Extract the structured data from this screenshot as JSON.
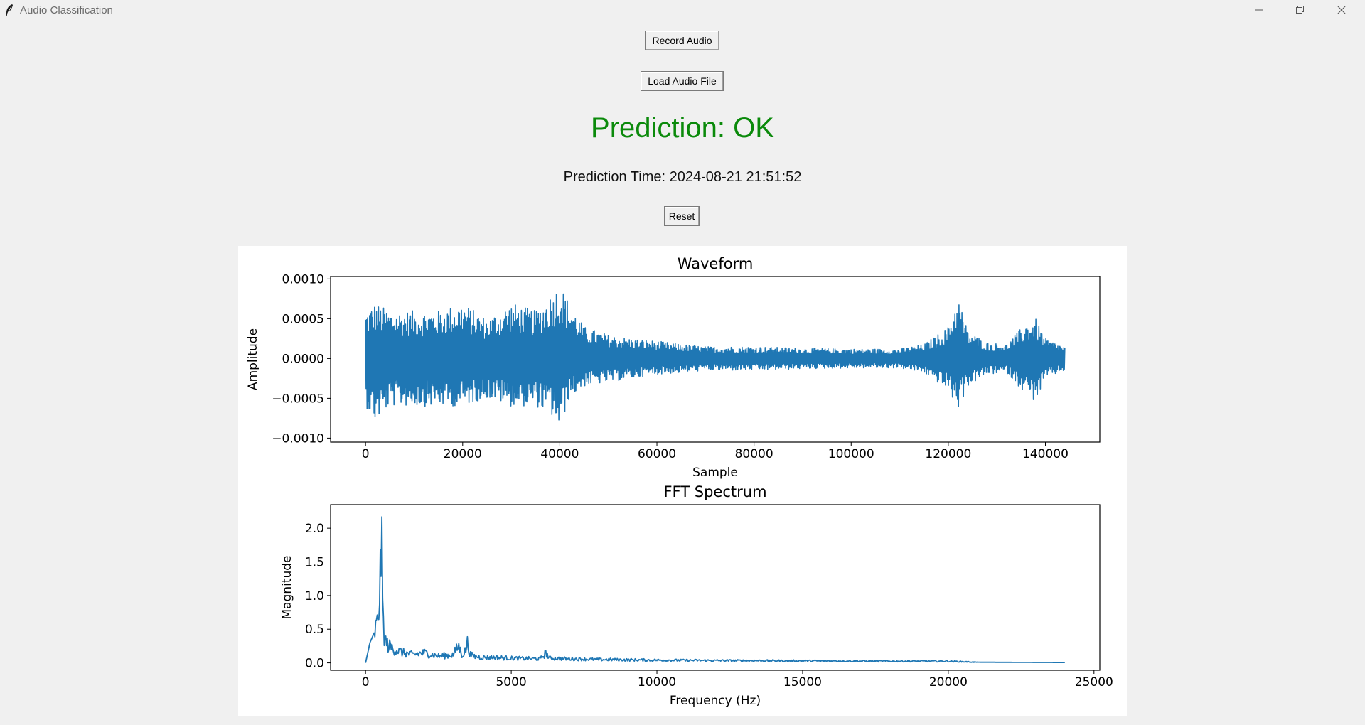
{
  "window": {
    "title": "Audio Classification"
  },
  "buttons": {
    "record": "Record Audio",
    "load": "Load Audio File",
    "reset": "Reset"
  },
  "prediction": {
    "text": "Prediction: OK",
    "color": "#0b8a0b"
  },
  "prediction_time": "Prediction Time: 2024-08-21 21:51:52",
  "chart_data": [
    {
      "type": "line",
      "title": "Waveform",
      "xlabel": "Sample",
      "ylabel": "Amplitude",
      "xlim": [
        -7200,
        151200
      ],
      "ylim": [
        -0.00105,
        0.00103
      ],
      "xticks": [
        0,
        20000,
        40000,
        60000,
        80000,
        100000,
        120000,
        140000
      ],
      "xtick_labels": [
        "0",
        "20000",
        "40000",
        "60000",
        "80000",
        "100000",
        "120000",
        "140000"
      ],
      "yticks": [
        0.001,
        0.0005,
        0.0,
        -0.0005,
        -0.001
      ],
      "ytick_labels": [
        "0.0010",
        "0.0005",
        "0.0000",
        "−0.0005",
        "−0.0010"
      ],
      "series": [
        {
          "color": "#1f77b4",
          "envelope": {
            "x": [
              0,
              2000,
              5000,
              10000,
              15000,
              20000,
              25000,
              30000,
              35000,
              38000,
              40000,
              42000,
              45000,
              50000,
              55000,
              60000,
              65000,
              70000,
              80000,
              90000,
              100000,
              110000,
              115000,
              120000,
              122000,
              124000,
              128000,
              132000,
              136000,
              138000,
              140000,
              144000
            ],
            "upper": [
              0.0006,
              0.0007,
              0.0006,
              0.0006,
              0.0006,
              0.0007,
              0.0005,
              0.0007,
              0.0006,
              0.0008,
              0.00095,
              0.0007,
              0.0004,
              0.0003,
              0.00025,
              0.00022,
              0.00018,
              0.00015,
              0.00015,
              0.00013,
              0.00012,
              0.00012,
              0.00018,
              0.0004,
              0.0008,
              0.00035,
              0.0002,
              0.00018,
              0.00045,
              0.0005,
              0.00025,
              0.00015
            ],
            "lower": [
              -0.0006,
              -0.0008,
              -0.0006,
              -0.0006,
              -0.0006,
              -0.0006,
              -0.0005,
              -0.0006,
              -0.0006,
              -0.0007,
              -0.0009,
              -0.0005,
              -0.00035,
              -0.0003,
              -0.00025,
              -0.0002,
              -0.00018,
              -0.00015,
              -0.00015,
              -0.00013,
              -0.00012,
              -0.00012,
              -0.00018,
              -0.0004,
              -0.00065,
              -0.00035,
              -0.0002,
              -0.00018,
              -0.00045,
              -0.00055,
              -0.00025,
              -0.00015
            ]
          }
        }
      ]
    },
    {
      "type": "line",
      "title": "FFT Spectrum",
      "xlabel": "Frequency (Hz)",
      "ylabel": "Magnitude",
      "xlim": [
        -1200,
        25200
      ],
      "ylim": [
        -0.11,
        2.35
      ],
      "xticks": [
        0,
        5000,
        10000,
        15000,
        20000,
        25000
      ],
      "xtick_labels": [
        "0",
        "5000",
        "10000",
        "15000",
        "20000",
        "25000"
      ],
      "yticks": [
        0.0,
        0.5,
        1.0,
        1.5,
        2.0
      ],
      "ytick_labels": [
        "0.0",
        "0.5",
        "1.0",
        "1.5",
        "2.0"
      ],
      "series": [
        {
          "color": "#1f77b4",
          "points": {
            "x": [
              0,
              150,
              300,
              400,
              450,
              500,
              520,
              540,
              560,
              580,
              600,
              620,
              640,
              660,
              700,
              800,
              1000,
              1300,
              1600,
              2000,
              2500,
              3000,
              3200,
              3300,
              3400,
              3500,
              3550,
              3600,
              3700,
              4000,
              4500,
              5000,
              6000,
              6200,
              6300,
              7000,
              8000,
              10000,
              12000,
              15000,
              18000,
              20000,
              21000,
              22000,
              24000
            ],
            "y": [
              0.0,
              0.3,
              0.45,
              0.55,
              0.8,
              1.4,
              0.9,
              2.2,
              1.5,
              1.0,
              0.7,
              0.5,
              0.45,
              0.35,
              0.3,
              0.25,
              0.2,
              0.15,
              0.12,
              0.15,
              0.1,
              0.12,
              0.25,
              0.12,
              0.15,
              0.3,
              0.2,
              0.12,
              0.1,
              0.08,
              0.08,
              0.07,
              0.06,
              0.15,
              0.07,
              0.06,
              0.05,
              0.04,
              0.035,
              0.03,
              0.025,
              0.025,
              0.01,
              0.008,
              0.005
            ]
          }
        }
      ]
    }
  ]
}
